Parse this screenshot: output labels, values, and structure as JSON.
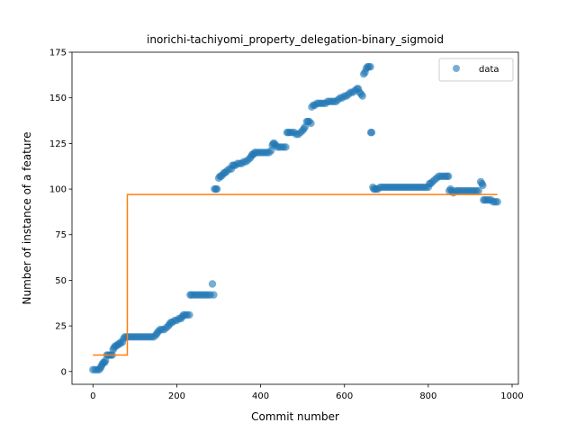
{
  "chart_data": {
    "type": "scatter",
    "title": "inorichi-tachiyomi_property_delegation-binary_sigmoid",
    "xlabel": "Commit number",
    "ylabel": "Number of instance of a feature",
    "xlim": [
      -50,
      1015
    ],
    "ylim": [
      -7,
      175
    ],
    "xticks": [
      0,
      200,
      400,
      600,
      800,
      1000
    ],
    "yticks": [
      0,
      25,
      50,
      75,
      100,
      125,
      150,
      175
    ],
    "legend": {
      "placement": "top-right",
      "entries": [
        "data"
      ]
    },
    "colors": {
      "data": "#1f77b4",
      "fit": "#ff7f0e"
    },
    "series": [
      {
        "name": "data",
        "kind": "scatter",
        "points": [
          [
            0,
            1
          ],
          [
            5,
            1
          ],
          [
            10,
            1
          ],
          [
            15,
            1
          ],
          [
            18,
            2
          ],
          [
            20,
            3
          ],
          [
            22,
            4
          ],
          [
            25,
            5
          ],
          [
            28,
            5
          ],
          [
            30,
            6
          ],
          [
            33,
            9
          ],
          [
            36,
            9
          ],
          [
            40,
            9
          ],
          [
            43,
            9
          ],
          [
            46,
            9
          ],
          [
            48,
            12
          ],
          [
            50,
            13
          ],
          [
            53,
            14
          ],
          [
            56,
            14
          ],
          [
            60,
            15
          ],
          [
            63,
            15
          ],
          [
            66,
            16
          ],
          [
            70,
            16
          ],
          [
            73,
            18
          ],
          [
            76,
            19
          ],
          [
            80,
            19
          ],
          [
            85,
            19
          ],
          [
            90,
            19
          ],
          [
            95,
            19
          ],
          [
            100,
            19
          ],
          [
            105,
            19
          ],
          [
            110,
            19
          ],
          [
            115,
            19
          ],
          [
            120,
            19
          ],
          [
            125,
            19
          ],
          [
            130,
            19
          ],
          [
            135,
            19
          ],
          [
            140,
            19
          ],
          [
            145,
            19
          ],
          [
            150,
            20
          ],
          [
            153,
            21
          ],
          [
            156,
            22
          ],
          [
            160,
            23
          ],
          [
            165,
            23
          ],
          [
            170,
            23
          ],
          [
            175,
            24
          ],
          [
            180,
            25
          ],
          [
            183,
            26
          ],
          [
            186,
            27
          ],
          [
            190,
            27
          ],
          [
            195,
            28
          ],
          [
            200,
            28
          ],
          [
            205,
            29
          ],
          [
            210,
            29
          ],
          [
            213,
            30
          ],
          [
            216,
            31
          ],
          [
            220,
            31
          ],
          [
            225,
            31
          ],
          [
            230,
            31
          ],
          [
            232,
            42
          ],
          [
            235,
            42
          ],
          [
            240,
            42
          ],
          [
            245,
            42
          ],
          [
            250,
            42
          ],
          [
            255,
            42
          ],
          [
            260,
            42
          ],
          [
            265,
            42
          ],
          [
            270,
            42
          ],
          [
            275,
            42
          ],
          [
            280,
            42
          ],
          [
            285,
            48
          ],
          [
            288,
            42
          ],
          [
            290,
            100
          ],
          [
            293,
            100
          ],
          [
            296,
            100
          ],
          [
            300,
            106
          ],
          [
            303,
            107
          ],
          [
            306,
            107
          ],
          [
            310,
            108
          ],
          [
            313,
            109
          ],
          [
            316,
            109
          ],
          [
            320,
            110
          ],
          [
            325,
            111
          ],
          [
            330,
            111
          ],
          [
            333,
            113
          ],
          [
            336,
            113
          ],
          [
            340,
            113
          ],
          [
            345,
            114
          ],
          [
            350,
            114
          ],
          [
            355,
            114
          ],
          [
            360,
            115
          ],
          [
            365,
            115
          ],
          [
            370,
            116
          ],
          [
            375,
            117
          ],
          [
            378,
            118
          ],
          [
            380,
            119
          ],
          [
            383,
            119
          ],
          [
            386,
            120
          ],
          [
            390,
            120
          ],
          [
            395,
            120
          ],
          [
            400,
            120
          ],
          [
            405,
            120
          ],
          [
            410,
            120
          ],
          [
            415,
            120
          ],
          [
            420,
            120
          ],
          [
            425,
            121
          ],
          [
            428,
            124
          ],
          [
            430,
            125
          ],
          [
            433,
            125
          ],
          [
            436,
            124
          ],
          [
            440,
            123
          ],
          [
            445,
            123
          ],
          [
            450,
            123
          ],
          [
            455,
            123
          ],
          [
            460,
            123
          ],
          [
            463,
            131
          ],
          [
            466,
            131
          ],
          [
            470,
            131
          ],
          [
            475,
            131
          ],
          [
            480,
            131
          ],
          [
            485,
            130
          ],
          [
            490,
            130
          ],
          [
            495,
            131
          ],
          [
            500,
            132
          ],
          [
            503,
            133
          ],
          [
            506,
            134
          ],
          [
            510,
            137
          ],
          [
            513,
            137
          ],
          [
            516,
            137
          ],
          [
            520,
            136
          ],
          [
            522,
            145
          ],
          [
            526,
            146
          ],
          [
            530,
            146
          ],
          [
            535,
            147
          ],
          [
            540,
            147
          ],
          [
            545,
            147
          ],
          [
            550,
            147
          ],
          [
            555,
            147
          ],
          [
            560,
            148
          ],
          [
            565,
            148
          ],
          [
            570,
            148
          ],
          [
            575,
            148
          ],
          [
            580,
            148
          ],
          [
            585,
            149
          ],
          [
            590,
            150
          ],
          [
            595,
            150
          ],
          [
            600,
            151
          ],
          [
            605,
            151
          ],
          [
            610,
            152
          ],
          [
            615,
            153
          ],
          [
            620,
            153
          ],
          [
            625,
            154
          ],
          [
            630,
            155
          ],
          [
            633,
            155
          ],
          [
            636,
            153
          ],
          [
            640,
            152
          ],
          [
            643,
            151
          ],
          [
            646,
            163
          ],
          [
            649,
            164
          ],
          [
            652,
            166
          ],
          [
            655,
            167
          ],
          [
            658,
            167
          ],
          [
            662,
            167
          ],
          [
            663,
            131
          ],
          [
            665,
            131
          ],
          [
            668,
            101
          ],
          [
            670,
            100
          ],
          [
            673,
            100
          ],
          [
            676,
            100
          ],
          [
            680,
            100
          ],
          [
            685,
            101
          ],
          [
            690,
            101
          ],
          [
            695,
            101
          ],
          [
            700,
            101
          ],
          [
            705,
            101
          ],
          [
            710,
            101
          ],
          [
            715,
            101
          ],
          [
            720,
            101
          ],
          [
            725,
            101
          ],
          [
            730,
            101
          ],
          [
            735,
            101
          ],
          [
            740,
            101
          ],
          [
            745,
            101
          ],
          [
            750,
            101
          ],
          [
            755,
            101
          ],
          [
            760,
            101
          ],
          [
            765,
            101
          ],
          [
            770,
            101
          ],
          [
            775,
            101
          ],
          [
            780,
            101
          ],
          [
            785,
            101
          ],
          [
            790,
            101
          ],
          [
            795,
            101
          ],
          [
            800,
            101
          ],
          [
            803,
            103
          ],
          [
            806,
            103
          ],
          [
            810,
            104
          ],
          [
            815,
            105
          ],
          [
            820,
            106
          ],
          [
            825,
            107
          ],
          [
            830,
            107
          ],
          [
            835,
            107
          ],
          [
            840,
            107
          ],
          [
            845,
            107
          ],
          [
            848,
            107
          ],
          [
            850,
            99
          ],
          [
            853,
            100
          ],
          [
            856,
            99
          ],
          [
            860,
            98
          ],
          [
            865,
            99
          ],
          [
            870,
            99
          ],
          [
            875,
            99
          ],
          [
            880,
            99
          ],
          [
            885,
            99
          ],
          [
            890,
            99
          ],
          [
            895,
            99
          ],
          [
            900,
            99
          ],
          [
            905,
            99
          ],
          [
            910,
            99
          ],
          [
            915,
            99
          ],
          [
            920,
            99
          ],
          [
            925,
            104
          ],
          [
            928,
            103
          ],
          [
            930,
            102
          ],
          [
            932,
            94
          ],
          [
            935,
            94
          ],
          [
            940,
            94
          ],
          [
            945,
            94
          ],
          [
            950,
            94
          ],
          [
            955,
            93
          ],
          [
            960,
            93
          ],
          [
            965,
            93
          ]
        ]
      },
      {
        "name": "",
        "kind": "step",
        "points": [
          [
            0,
            9
          ],
          [
            82,
            9
          ],
          [
            82,
            97
          ],
          [
            965,
            97
          ]
        ]
      }
    ]
  }
}
